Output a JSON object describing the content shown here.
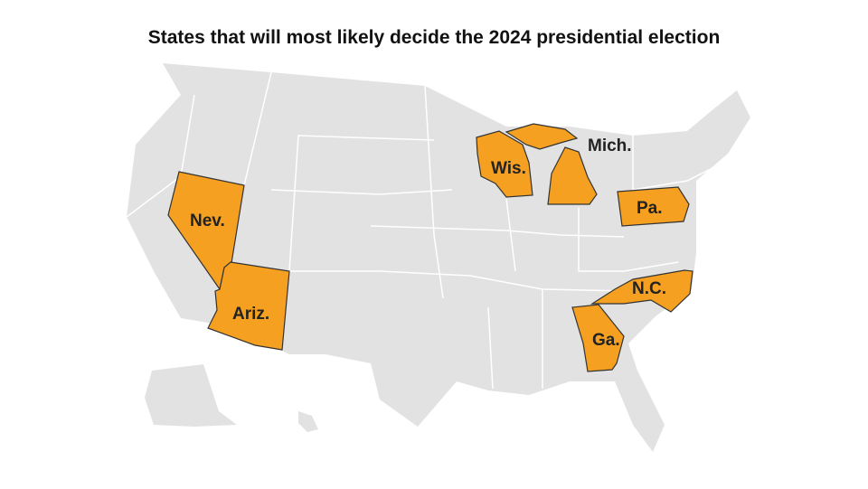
{
  "title": "States that will most likely decide the 2024 presidential election",
  "colors": {
    "highlight": "#F5A020",
    "other_states": "#E2E2E2",
    "borders": "#FFFFFF",
    "highlight_outline": "#333333"
  },
  "states": [
    {
      "name": "Nevada",
      "label": "Nev."
    },
    {
      "name": "Arizona",
      "label": "Ariz."
    },
    {
      "name": "Wisconsin",
      "label": "Wis."
    },
    {
      "name": "Michigan",
      "label": "Mich."
    },
    {
      "name": "Pennsylvania",
      "label": "Pa."
    },
    {
      "name": "North Carolina",
      "label": "N.C."
    },
    {
      "name": "Georgia",
      "label": "Ga."
    }
  ]
}
